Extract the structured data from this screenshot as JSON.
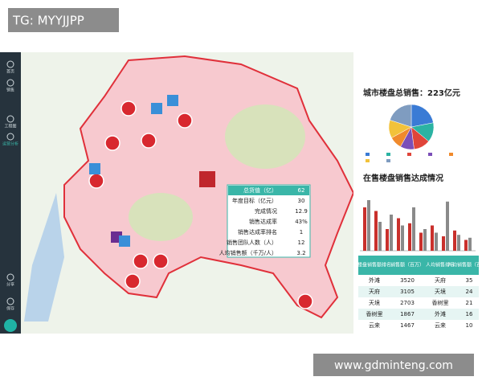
{
  "watermark_top": "TG: MYYJJPP",
  "watermark_bottom": "www.gdminteng.com",
  "sidebar": [
    "首页",
    "销售",
    "工程图",
    "运营分析",
    "分享",
    "保存"
  ],
  "popup": {
    "rows": [
      {
        "label": "总货值（亿）",
        "value": 62
      },
      {
        "label": "年度目标（亿元）",
        "value": 30
      },
      {
        "label": "完成情况",
        "value": 12.9
      },
      {
        "label": "销售达成率",
        "value": "43%"
      },
      {
        "label": "销售达成率排名",
        "value": 1
      },
      {
        "label": "销售团队人数（人）",
        "value": 12
      },
      {
        "label": "人均销售额（千万/人）",
        "value": 3.2
      }
    ]
  },
  "pie": {
    "title": "城市楼盘总销售：223亿元",
    "values": [
      22,
      14,
      12,
      10,
      9,
      13,
      20
    ],
    "colors": [
      "#3a7bd5",
      "#2bb3a3",
      "#e0453a",
      "#7b4fb8",
      "#f08a2c",
      "#f2c23a",
      "#7f9cc0"
    ]
  },
  "bars": {
    "title": "在售楼盘销售达成情况",
    "series": [
      {
        "color": "#c9302c",
        "values": [
          60,
          55,
          30,
          45,
          38,
          25,
          35,
          20,
          28,
          15
        ]
      },
      {
        "color": "#8a8a8a",
        "values": [
          70,
          40,
          50,
          35,
          60,
          30,
          25,
          68,
          22,
          18
        ]
      }
    ]
  },
  "table": {
    "header": [
      "楼盘销售额排名",
      "销售额（百万）",
      "人均销售排名",
      "人均销售额（百万）"
    ],
    "rows": [
      [
        "外滩",
        3520,
        "天府",
        35
      ],
      [
        "天府",
        3105,
        "天境",
        24
      ],
      [
        "天境",
        2703,
        "香树里",
        21
      ],
      [
        "香树里",
        1867,
        "外滩",
        16
      ],
      [
        "云来",
        1467,
        "云来",
        10
      ]
    ]
  }
}
